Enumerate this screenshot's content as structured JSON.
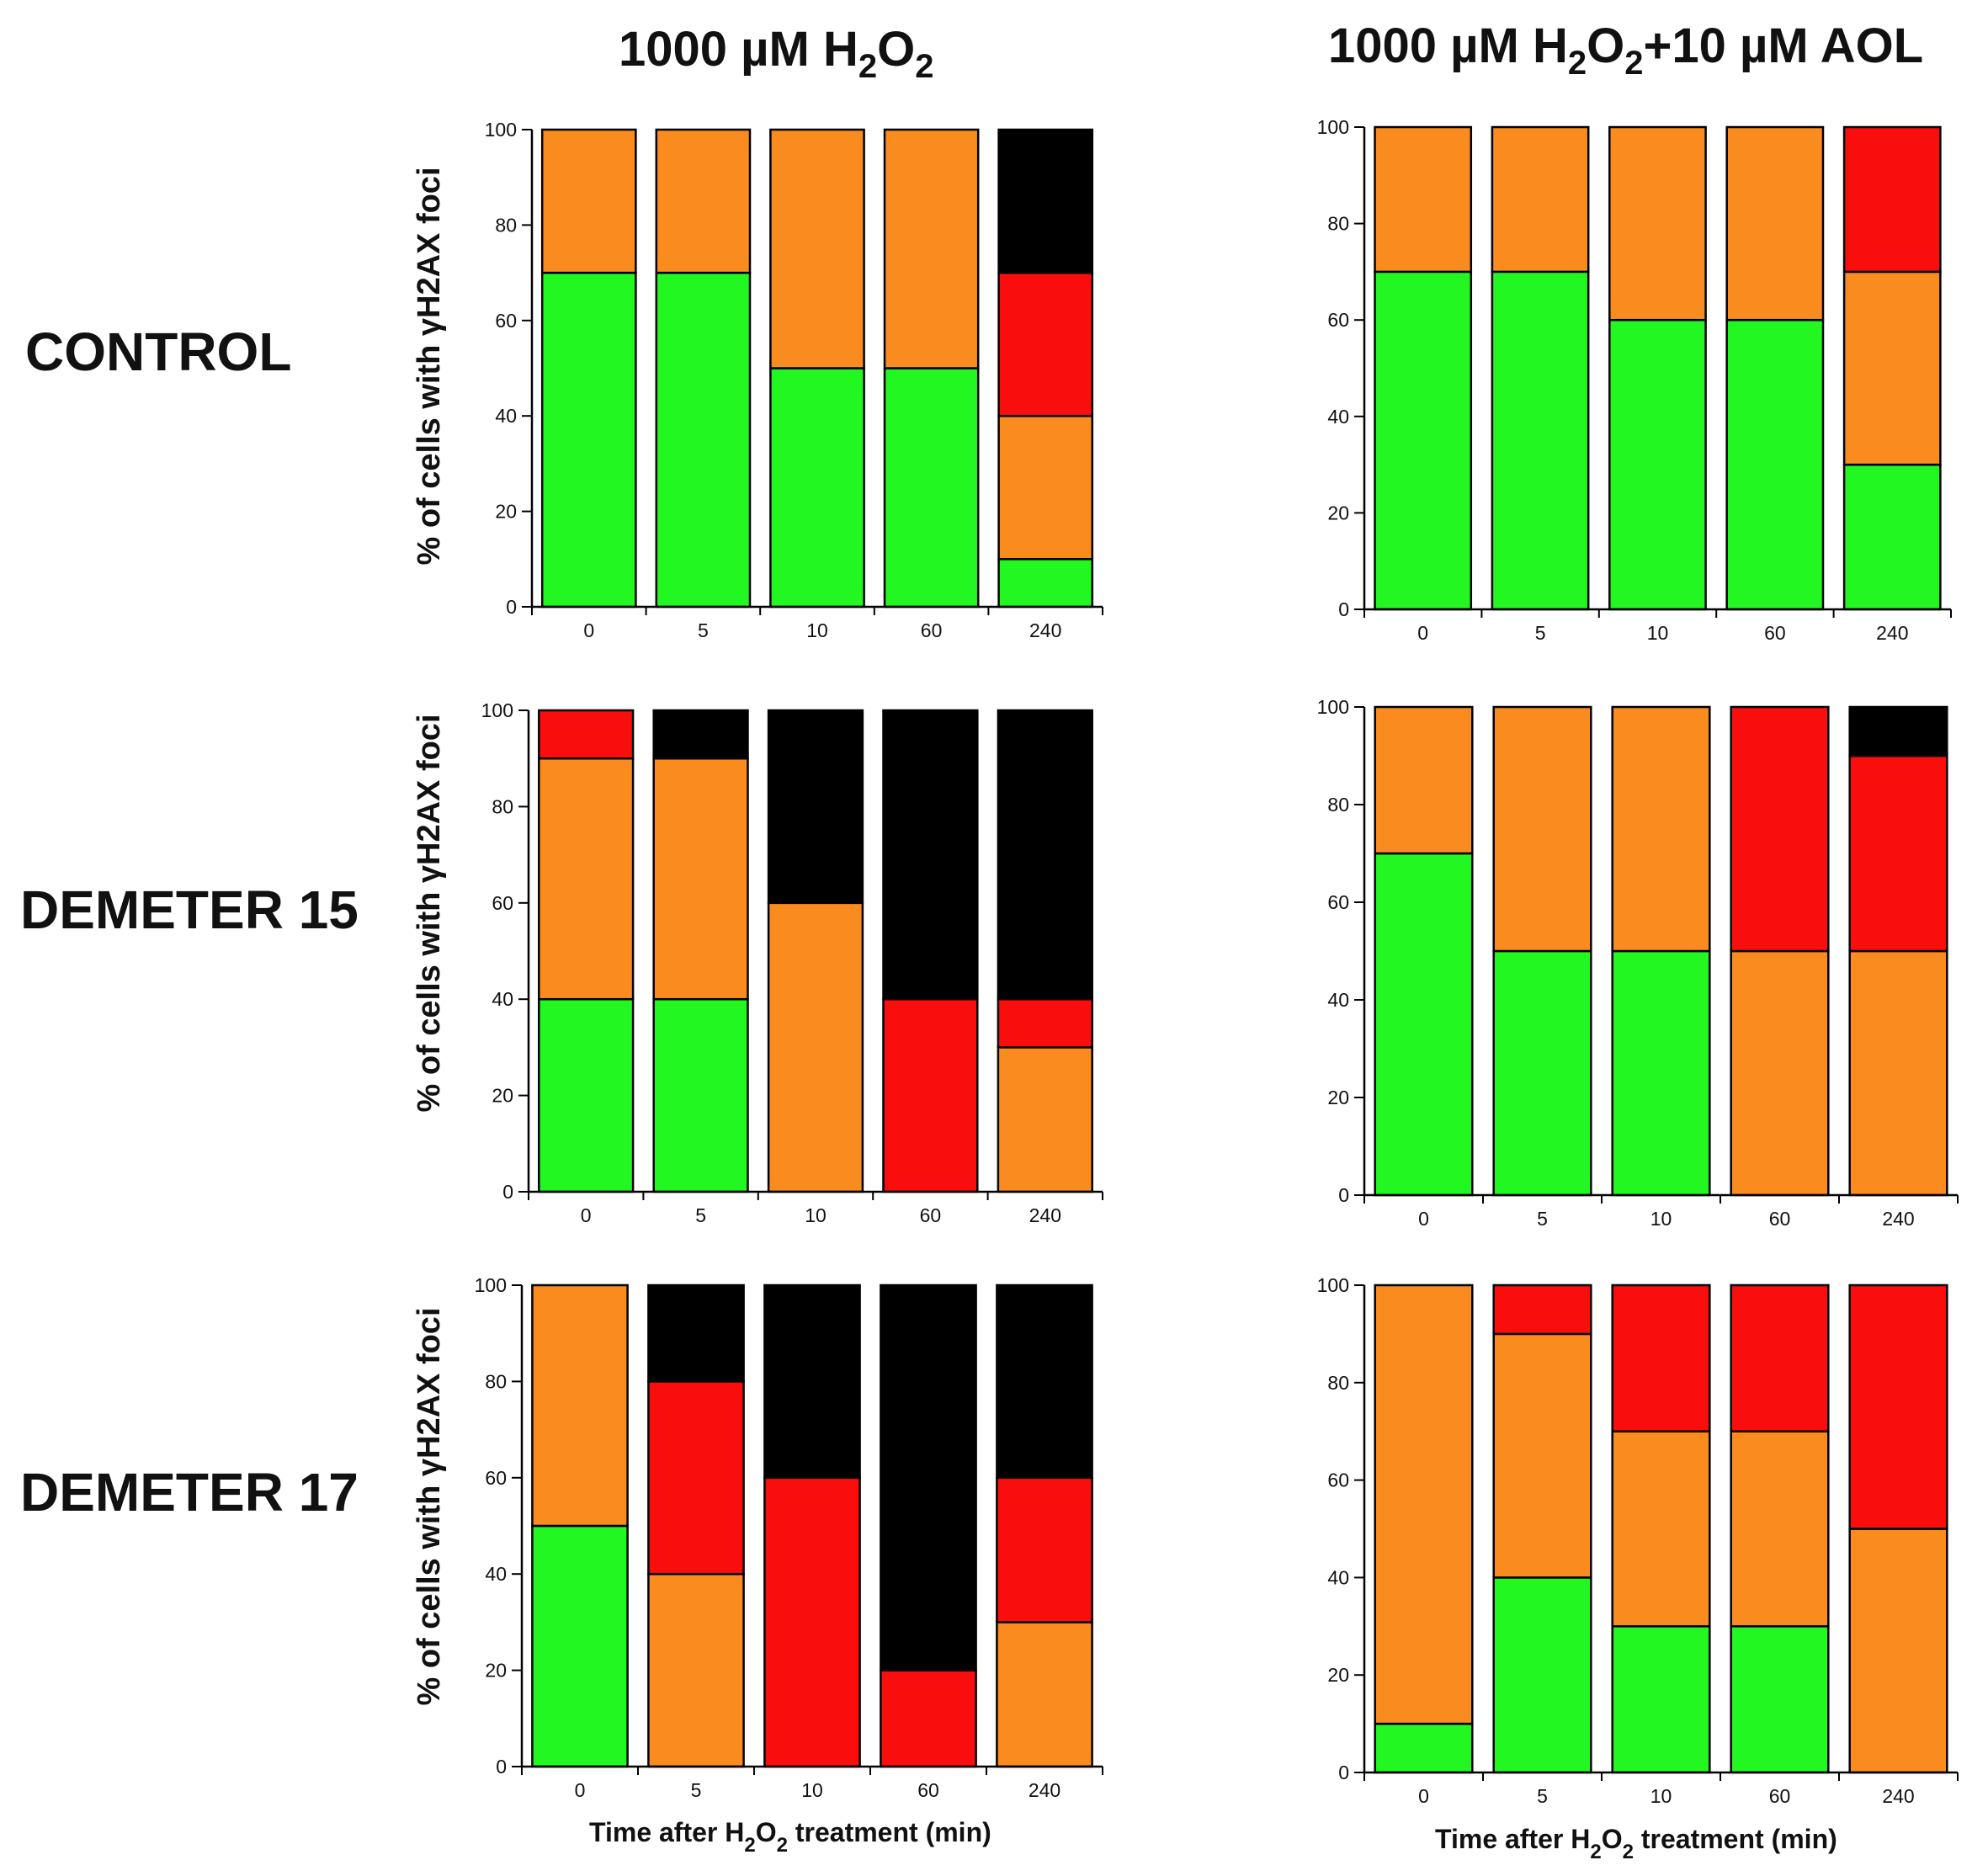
{
  "columns": [
    {
      "title_main": "1000 µM H",
      "title_sub": "2",
      "title_mid": "O",
      "title_sub2": "2",
      "title_tail": ""
    },
    {
      "title_main": "1000 µM H",
      "title_sub": "2",
      "title_mid": "O",
      "title_sub2": "2",
      "title_tail": "+10 µM AOL"
    }
  ],
  "rows": [
    "CONTROL",
    "DEMETER 15",
    "DEMETER 17"
  ],
  "ylabel": "% of cells with γH2AX foci",
  "xlabel": {
    "pre": "Time after H",
    "sub": "2",
    "mid": "O",
    "sub2": "2",
    "post": " treatment (min)"
  },
  "categories": [
    "0",
    "5",
    "10",
    "60",
    "240"
  ],
  "yticks": [
    "0",
    "20",
    "40",
    "60",
    "80",
    "100"
  ],
  "colors": {
    "green": "#22f722",
    "orange": "#f98b1f",
    "red": "#f90d0d",
    "black": "#000000"
  },
  "chart_data": [
    {
      "type": "bar",
      "stacked": true,
      "row": "CONTROL",
      "column": "1000 µM H2O2",
      "categories": [
        "0",
        "5",
        "10",
        "60",
        "240"
      ],
      "ylim": [
        0,
        100
      ],
      "series": [
        {
          "name": "green",
          "values": [
            70,
            70,
            50,
            50,
            10
          ]
        },
        {
          "name": "orange",
          "values": [
            30,
            30,
            50,
            50,
            30
          ]
        },
        {
          "name": "red",
          "values": [
            0,
            0,
            0,
            0,
            30
          ]
        },
        {
          "name": "black",
          "values": [
            0,
            0,
            0,
            0,
            30
          ]
        }
      ]
    },
    {
      "type": "bar",
      "stacked": true,
      "row": "CONTROL",
      "column": "1000 µM H2O2+10 µM AOL",
      "categories": [
        "0",
        "5",
        "10",
        "60",
        "240"
      ],
      "ylim": [
        0,
        100
      ],
      "series": [
        {
          "name": "green",
          "values": [
            70,
            70,
            60,
            60,
            30
          ]
        },
        {
          "name": "orange",
          "values": [
            30,
            30,
            40,
            40,
            40
          ]
        },
        {
          "name": "red",
          "values": [
            0,
            0,
            0,
            0,
            30
          ]
        },
        {
          "name": "black",
          "values": [
            0,
            0,
            0,
            0,
            0
          ]
        }
      ]
    },
    {
      "type": "bar",
      "stacked": true,
      "row": "DEMETER 15",
      "column": "1000 µM H2O2",
      "categories": [
        "0",
        "5",
        "10",
        "60",
        "240"
      ],
      "ylim": [
        0,
        100
      ],
      "series": [
        {
          "name": "green",
          "values": [
            40,
            40,
            0,
            0,
            0
          ]
        },
        {
          "name": "orange",
          "values": [
            50,
            50,
            60,
            0,
            30
          ]
        },
        {
          "name": "red",
          "values": [
            10,
            0,
            0,
            40,
            10
          ]
        },
        {
          "name": "black",
          "values": [
            0,
            10,
            40,
            60,
            60
          ]
        }
      ]
    },
    {
      "type": "bar",
      "stacked": true,
      "row": "DEMETER 15",
      "column": "1000 µM H2O2+10 µM AOL",
      "categories": [
        "0",
        "5",
        "10",
        "60",
        "240"
      ],
      "ylim": [
        0,
        100
      ],
      "series": [
        {
          "name": "green",
          "values": [
            70,
            50,
            50,
            0,
            0
          ]
        },
        {
          "name": "orange",
          "values": [
            30,
            50,
            50,
            50,
            50
          ]
        },
        {
          "name": "red",
          "values": [
            0,
            0,
            0,
            50,
            40
          ]
        },
        {
          "name": "black",
          "values": [
            0,
            0,
            0,
            0,
            10
          ]
        }
      ]
    },
    {
      "type": "bar",
      "stacked": true,
      "row": "DEMETER 17",
      "column": "1000 µM H2O2",
      "categories": [
        "0",
        "5",
        "10",
        "60",
        "240"
      ],
      "ylim": [
        0,
        100
      ],
      "series": [
        {
          "name": "green",
          "values": [
            50,
            0,
            0,
            0,
            0
          ]
        },
        {
          "name": "orange",
          "values": [
            50,
            40,
            0,
            0,
            30
          ]
        },
        {
          "name": "red",
          "values": [
            0,
            40,
            60,
            20,
            30
          ]
        },
        {
          "name": "black",
          "values": [
            0,
            20,
            40,
            80,
            40
          ]
        }
      ]
    },
    {
      "type": "bar",
      "stacked": true,
      "row": "DEMETER 17",
      "column": "1000 µM H2O2+10 µM AOL",
      "categories": [
        "0",
        "5",
        "10",
        "60",
        "240"
      ],
      "ylim": [
        0,
        100
      ],
      "series": [
        {
          "name": "green",
          "values": [
            10,
            40,
            30,
            30,
            0
          ]
        },
        {
          "name": "orange",
          "values": [
            90,
            50,
            40,
            40,
            50
          ]
        },
        {
          "name": "red",
          "values": [
            0,
            10,
            30,
            30,
            50
          ]
        },
        {
          "name": "black",
          "values": [
            0,
            0,
            0,
            0,
            0
          ]
        }
      ]
    }
  ]
}
